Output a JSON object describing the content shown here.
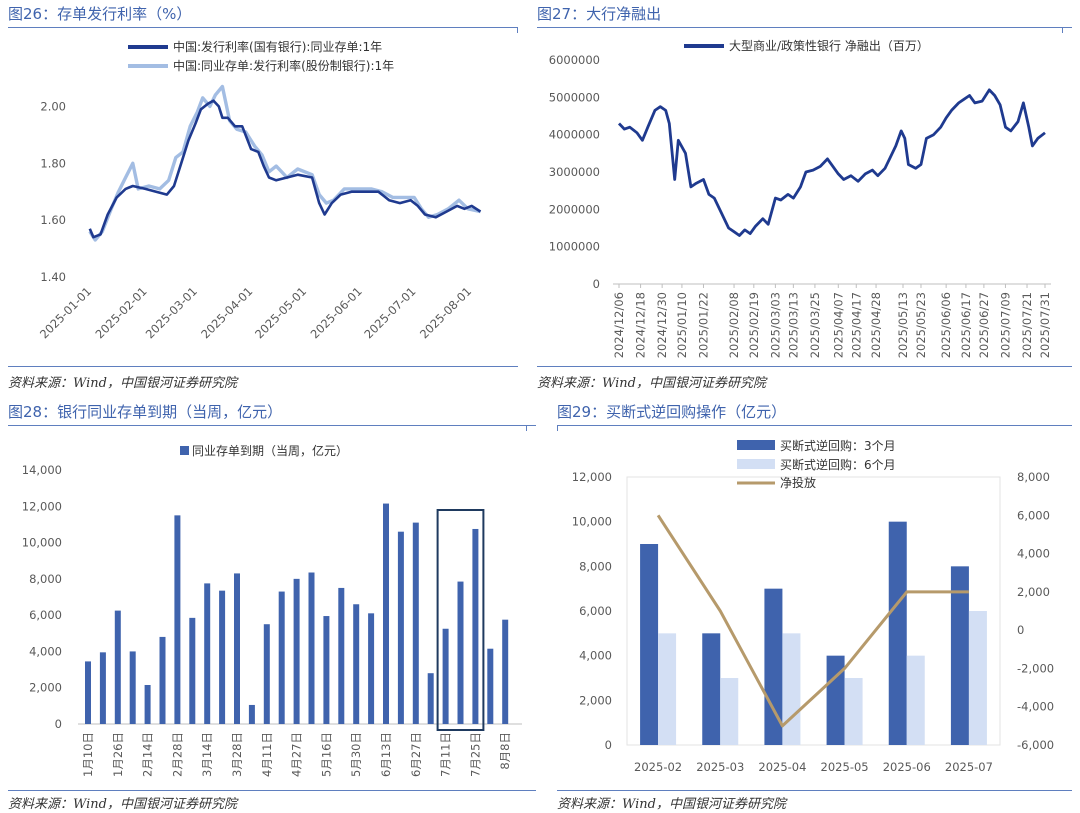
{
  "panels": {
    "p26": {
      "title": "图26：存单发行利率（%）",
      "source": "资料来源：Wind，中国银河证券研究院"
    },
    "p27": {
      "title": "图27：大行净融出",
      "source": "资料来源：Wind，中国银河证券研究院"
    },
    "p28": {
      "title": "图28：银行同业存单到期（当周，亿元）",
      "source": "资料来源：Wind，中国银河证券研究院"
    },
    "p29": {
      "title": "图29：买断式逆回购操作（亿元）",
      "source": "资料来源：Wind，中国银河证券研究院"
    }
  },
  "chart_data": [
    {
      "id": "p26",
      "type": "line",
      "title": "存单发行利率（%）",
      "ylim": [
        1.4,
        2.1
      ],
      "yticks": [
        "1.40",
        "1.60",
        "1.80",
        "2.00"
      ],
      "xticks": [
        "2025-01-01",
        "2025-02-01",
        "2025-03-01",
        "2025-04-01",
        "2025-05-01",
        "2025-06-01",
        "2025-07-01",
        "2025-08-01"
      ],
      "legend_position": "top",
      "series": [
        {
          "name": "中国:发行利率(国有银行):同业存单:1年",
          "color": "#1f3a8f",
          "points": [
            [
              "2025-01-02",
              1.57
            ],
            [
              "2025-01-04",
              1.54
            ],
            [
              "2025-01-08",
              1.55
            ],
            [
              "2025-01-12",
              1.62
            ],
            [
              "2025-01-17",
              1.68
            ],
            [
              "2025-01-22",
              1.71
            ],
            [
              "2025-01-26",
              1.72
            ],
            [
              "2025-02-02",
              1.71
            ],
            [
              "2025-02-08",
              1.7
            ],
            [
              "2025-02-14",
              1.69
            ],
            [
              "2025-02-18",
              1.72
            ],
            [
              "2025-02-22",
              1.8
            ],
            [
              "2025-02-26",
              1.88
            ],
            [
              "2025-03-02",
              1.94
            ],
            [
              "2025-03-05",
              1.99
            ],
            [
              "2025-03-09",
              2.01
            ],
            [
              "2025-03-12",
              2.02
            ],
            [
              "2025-03-15",
              2.0
            ],
            [
              "2025-03-17",
              1.96
            ],
            [
              "2025-03-20",
              1.96
            ],
            [
              "2025-03-24",
              1.93
            ],
            [
              "2025-03-28",
              1.93
            ],
            [
              "2025-04-02",
              1.85
            ],
            [
              "2025-04-06",
              1.84
            ],
            [
              "2025-04-09",
              1.79
            ],
            [
              "2025-04-12",
              1.75
            ],
            [
              "2025-04-16",
              1.74
            ],
            [
              "2025-04-22",
              1.75
            ],
            [
              "2025-04-28",
              1.76
            ],
            [
              "2025-05-06",
              1.75
            ],
            [
              "2025-05-10",
              1.66
            ],
            [
              "2025-05-13",
              1.62
            ],
            [
              "2025-05-17",
              1.66
            ],
            [
              "2025-05-22",
              1.69
            ],
            [
              "2025-05-28",
              1.7
            ],
            [
              "2025-06-05",
              1.7
            ],
            [
              "2025-06-12",
              1.7
            ],
            [
              "2025-06-18",
              1.67
            ],
            [
              "2025-06-24",
              1.66
            ],
            [
              "2025-06-30",
              1.67
            ],
            [
              "2025-07-04",
              1.65
            ],
            [
              "2025-07-08",
              1.62
            ],
            [
              "2025-07-14",
              1.61
            ],
            [
              "2025-07-20",
              1.63
            ],
            [
              "2025-07-26",
              1.65
            ],
            [
              "2025-07-30",
              1.64
            ],
            [
              "2025-08-03",
              1.65
            ],
            [
              "2025-08-08",
              1.63
            ]
          ]
        },
        {
          "name": "中国:同业存单:发行利率(股份制银行):1年",
          "color": "#a3bde3",
          "points": [
            [
              "2025-01-02",
              1.56
            ],
            [
              "2025-01-05",
              1.53
            ],
            [
              "2025-01-09",
              1.56
            ],
            [
              "2025-01-14",
              1.64
            ],
            [
              "2025-01-18",
              1.7
            ],
            [
              "2025-01-22",
              1.75
            ],
            [
              "2025-01-26",
              1.8
            ],
            [
              "2025-01-29",
              1.71
            ],
            [
              "2025-02-04",
              1.72
            ],
            [
              "2025-02-10",
              1.71
            ],
            [
              "2025-02-15",
              1.74
            ],
            [
              "2025-02-19",
              1.82
            ],
            [
              "2025-02-23",
              1.84
            ],
            [
              "2025-02-27",
              1.93
            ],
            [
              "2025-03-03",
              1.98
            ],
            [
              "2025-03-06",
              2.03
            ],
            [
              "2025-03-10",
              2.0
            ],
            [
              "2025-03-13",
              2.04
            ],
            [
              "2025-03-17",
              2.07
            ],
            [
              "2025-03-21",
              1.95
            ],
            [
              "2025-03-25",
              1.92
            ],
            [
              "2025-03-30",
              1.91
            ],
            [
              "2025-04-04",
              1.86
            ],
            [
              "2025-04-08",
              1.83
            ],
            [
              "2025-04-12",
              1.77
            ],
            [
              "2025-04-16",
              1.79
            ],
            [
              "2025-04-22",
              1.75
            ],
            [
              "2025-04-28",
              1.78
            ],
            [
              "2025-05-06",
              1.76
            ],
            [
              "2025-05-10",
              1.69
            ],
            [
              "2025-05-14",
              1.66
            ],
            [
              "2025-05-18",
              1.67
            ],
            [
              "2025-05-24",
              1.71
            ],
            [
              "2025-05-30",
              1.71
            ],
            [
              "2025-06-08",
              1.71
            ],
            [
              "2025-06-14",
              1.7
            ],
            [
              "2025-06-20",
              1.68
            ],
            [
              "2025-06-26",
              1.68
            ],
            [
              "2025-07-02",
              1.68
            ],
            [
              "2025-07-06",
              1.64
            ],
            [
              "2025-07-10",
              1.61
            ],
            [
              "2025-07-15",
              1.62
            ],
            [
              "2025-07-21",
              1.64
            ],
            [
              "2025-07-27",
              1.67
            ],
            [
              "2025-08-01",
              1.64
            ],
            [
              "2025-08-08",
              1.63
            ]
          ]
        }
      ]
    },
    {
      "id": "p27",
      "type": "line",
      "title": "大行净融出",
      "ylim": [
        0,
        6000000
      ],
      "yticks": [
        "0",
        "1000000",
        "2000000",
        "3000000",
        "4000000",
        "5000000",
        "6000000"
      ],
      "xticks": [
        "2024/12/06",
        "2024/12/18",
        "2024/12/30",
        "2025/01/10",
        "2025/01/22",
        "2025/02/08",
        "2025/02/19",
        "2025/03/03",
        "2025/03/13",
        "2025/03/25",
        "2025/04/07",
        "2025/04/17",
        "2025/04/28",
        "2025/05/13",
        "2025/05/23",
        "2025/06/06",
        "2025/06/17",
        "2025/06/27",
        "2025/07/09",
        "2025/07/21",
        "2025/07/31"
      ],
      "legend_position": "top",
      "series": [
        {
          "name": "大型商业/政策性银行 净融出（百万）",
          "color": "#1f3a8f",
          "points": [
            [
              "2024-12-06",
              4300000
            ],
            [
              "2024-12-09",
              4150000
            ],
            [
              "2024-12-12",
              4200000
            ],
            [
              "2024-12-16",
              4050000
            ],
            [
              "2024-12-19",
              3850000
            ],
            [
              "2024-12-22",
              4200000
            ],
            [
              "2024-12-26",
              4650000
            ],
            [
              "2024-12-29",
              4750000
            ],
            [
              "2025-01-01",
              4650000
            ],
            [
              "2025-01-03",
              4300000
            ],
            [
              "2025-01-06",
              2800000
            ],
            [
              "2025-01-08",
              3850000
            ],
            [
              "2025-01-12",
              3500000
            ],
            [
              "2025-01-15",
              2600000
            ],
            [
              "2025-01-18",
              2700000
            ],
            [
              "2025-01-22",
              2800000
            ],
            [
              "2025-01-25",
              2400000
            ],
            [
              "2025-01-28",
              2300000
            ],
            [
              "2025-02-01",
              1900000
            ],
            [
              "2025-02-05",
              1500000
            ],
            [
              "2025-02-08",
              1400000
            ],
            [
              "2025-02-11",
              1300000
            ],
            [
              "2025-02-14",
              1450000
            ],
            [
              "2025-02-17",
              1350000
            ],
            [
              "2025-02-20",
              1550000
            ],
            [
              "2025-02-24",
              1750000
            ],
            [
              "2025-02-27",
              1600000
            ],
            [
              "2025-03-03",
              2300000
            ],
            [
              "2025-03-06",
              2250000
            ],
            [
              "2025-03-10",
              2400000
            ],
            [
              "2025-03-13",
              2300000
            ],
            [
              "2025-03-17",
              2600000
            ],
            [
              "2025-03-20",
              3000000
            ],
            [
              "2025-03-24",
              3050000
            ],
            [
              "2025-03-28",
              3150000
            ],
            [
              "2025-04-01",
              3350000
            ],
            [
              "2025-04-04",
              3150000
            ],
            [
              "2025-04-07",
              2950000
            ],
            [
              "2025-04-10",
              2800000
            ],
            [
              "2025-04-14",
              2900000
            ],
            [
              "2025-04-18",
              2750000
            ],
            [
              "2025-04-22",
              2950000
            ],
            [
              "2025-04-26",
              3050000
            ],
            [
              "2025-04-29",
              2900000
            ],
            [
              "2025-05-03",
              3100000
            ],
            [
              "2025-05-06",
              3400000
            ],
            [
              "2025-05-09",
              3700000
            ],
            [
              "2025-05-12",
              4100000
            ],
            [
              "2025-05-14",
              3900000
            ],
            [
              "2025-05-16",
              3200000
            ],
            [
              "2025-05-20",
              3100000
            ],
            [
              "2025-05-23",
              3200000
            ],
            [
              "2025-05-26",
              3900000
            ],
            [
              "2025-05-30",
              4000000
            ],
            [
              "2025-06-03",
              4200000
            ],
            [
              "2025-06-06",
              4450000
            ],
            [
              "2025-06-09",
              4650000
            ],
            [
              "2025-06-13",
              4850000
            ],
            [
              "2025-06-16",
              4950000
            ],
            [
              "2025-06-19",
              5050000
            ],
            [
              "2025-06-22",
              4850000
            ],
            [
              "2025-06-26",
              4900000
            ],
            [
              "2025-06-30",
              5200000
            ],
            [
              "2025-07-03",
              5050000
            ],
            [
              "2025-07-06",
              4800000
            ],
            [
              "2025-07-09",
              4200000
            ],
            [
              "2025-07-12",
              4100000
            ],
            [
              "2025-07-16",
              4350000
            ],
            [
              "2025-07-19",
              4850000
            ],
            [
              "2025-07-22",
              4200000
            ],
            [
              "2025-07-24",
              3700000
            ],
            [
              "2025-07-27",
              3900000
            ],
            [
              "2025-07-31",
              4050000
            ]
          ]
        }
      ]
    },
    {
      "id": "p28",
      "type": "bar",
      "title": "银行同业存单到期（当周，亿元）",
      "ylim": [
        0,
        14000
      ],
      "yticks": [
        "0",
        "2,000",
        "4,000",
        "6,000",
        "8,000",
        "10,000",
        "12,000",
        "14,000"
      ],
      "legend_position": "top",
      "series_name": "同业存单到期（当周，亿元）",
      "color": "#3f63ad",
      "xtick_labels": [
        "1月10日",
        "1月26日",
        "2月14日",
        "2月28日",
        "3月14日",
        "3月28日",
        "4月11日",
        "4月27日",
        "5月16日",
        "5月30日",
        "6月13日",
        "6月27日",
        "7月11日",
        "7月25日",
        "8月8日"
      ],
      "values": [
        3450,
        3950,
        6250,
        4000,
        2150,
        4800,
        11500,
        5850,
        7750,
        7350,
        8300,
        1050,
        5500,
        7300,
        8000,
        8350,
        5950,
        7500,
        6600,
        6100,
        12150,
        10600,
        11100,
        2800,
        5250,
        7850,
        10750,
        4150,
        5750
      ],
      "highlight_range": [
        24,
        26
      ]
    },
    {
      "id": "p29",
      "type": "bar",
      "title": "买断式逆回购操作（亿元）",
      "categories": [
        "2025-02",
        "2025-03",
        "2025-04",
        "2025-05",
        "2025-06",
        "2025-07"
      ],
      "ylim": [
        0,
        12000
      ],
      "yticks": [
        "0",
        "2,000",
        "4,000",
        "6,000",
        "8,000",
        "10,000",
        "12,000"
      ],
      "y2lim": [
        -6000,
        8000
      ],
      "y2ticks": [
        "-6,000",
        "-4,000",
        "-2,000",
        "0",
        "2,000",
        "4,000",
        "6,000",
        "8,000"
      ],
      "legend_position": "top",
      "series": [
        {
          "name": "买断式逆回购：3个月",
          "kind": "bar",
          "color": "#3f63ad",
          "values": [
            9000,
            5000,
            7000,
            4000,
            10000,
            8000
          ]
        },
        {
          "name": "买断式逆回购：6个月",
          "kind": "bar",
          "color": "#d3dff4",
          "values": [
            5000,
            3000,
            5000,
            3000,
            4000,
            6000
          ]
        },
        {
          "name": "净投放",
          "kind": "line",
          "axis": "right",
          "color": "#b69a6b",
          "values": [
            6000,
            1000,
            -5000,
            -2000,
            2000,
            2000
          ]
        }
      ]
    }
  ]
}
